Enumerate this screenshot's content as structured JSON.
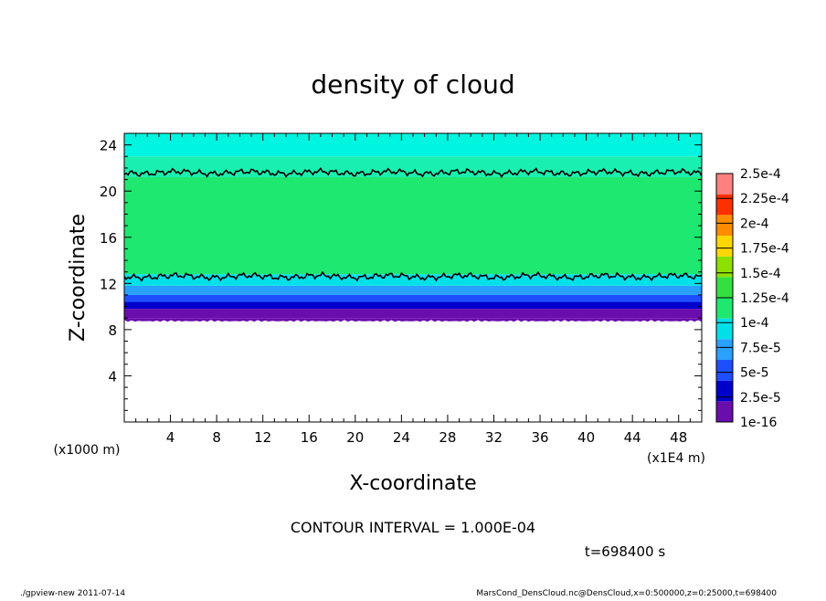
{
  "chart_data": {
    "type": "heatmap",
    "title": "density of cloud",
    "xlabel": "X-coordinate",
    "ylabel": "Z-coordinate",
    "x_unit_label": "(x1E4 m)",
    "y_unit_label": "(x1000 m)",
    "xlim": [
      0,
      50
    ],
    "ylim": [
      0,
      25
    ],
    "x_ticks": [
      "4",
      "8",
      "12",
      "16",
      "20",
      "24",
      "28",
      "32",
      "36",
      "40",
      "44",
      "48"
    ],
    "x_tick_values": [
      4,
      8,
      12,
      16,
      20,
      24,
      28,
      32,
      36,
      40,
      44,
      48
    ],
    "y_ticks": [
      "4",
      "8",
      "12",
      "16",
      "20",
      "24"
    ],
    "y_tick_values": [
      4,
      8,
      12,
      16,
      20,
      24
    ],
    "z_range_cloud": [
      9,
      25
    ],
    "contour_interval_text": "CONTOUR INTERVAL = 1.000E-04",
    "time_text": "t=698400 s",
    "colorbar": {
      "labels": [
        "1e-16",
        "2.5e-5",
        "5e-5",
        "7.5e-5",
        "1e-4",
        "1.25e-4",
        "1.5e-4",
        "1.75e-4",
        "2e-4",
        "2.25e-4",
        "2.5e-4"
      ],
      "colors": [
        "#6a0dad",
        "#0000cd",
        "#1e4fff",
        "#2aa0ff",
        "#00e0e8",
        "#1ee870",
        "#33e040",
        "#8ee000",
        "#ffd700",
        "#ff8c00",
        "#ff3000",
        "#ff8080"
      ]
    },
    "layers": [
      {
        "z_bottom": 9.0,
        "z_top": 9.8,
        "color": "#6a0dad"
      },
      {
        "z_bottom": 9.8,
        "z_top": 10.4,
        "color": "#0000cd"
      },
      {
        "z_bottom": 10.4,
        "z_top": 11.0,
        "color": "#1e4fff"
      },
      {
        "z_bottom": 11.0,
        "z_top": 11.8,
        "color": "#2aa0ff"
      },
      {
        "z_bottom": 11.8,
        "z_top": 12.8,
        "color": "#00e0e8"
      },
      {
        "z_bottom": 12.8,
        "z_top": 21.2,
        "color": "#1ee870"
      },
      {
        "z_bottom": 21.2,
        "z_top": 23.0,
        "color": "#19f0b0"
      },
      {
        "z_bottom": 23.0,
        "z_top": 25.0,
        "color": "#00f5e0"
      }
    ],
    "contour_lines_z": [
      12.6,
      21.6
    ]
  },
  "footer": {
    "left": "./gpview-new  2011-07-14",
    "right": "MarsCond_DensCloud.nc@DensCloud,x=0:500000,z=0:25000,t=698400"
  }
}
